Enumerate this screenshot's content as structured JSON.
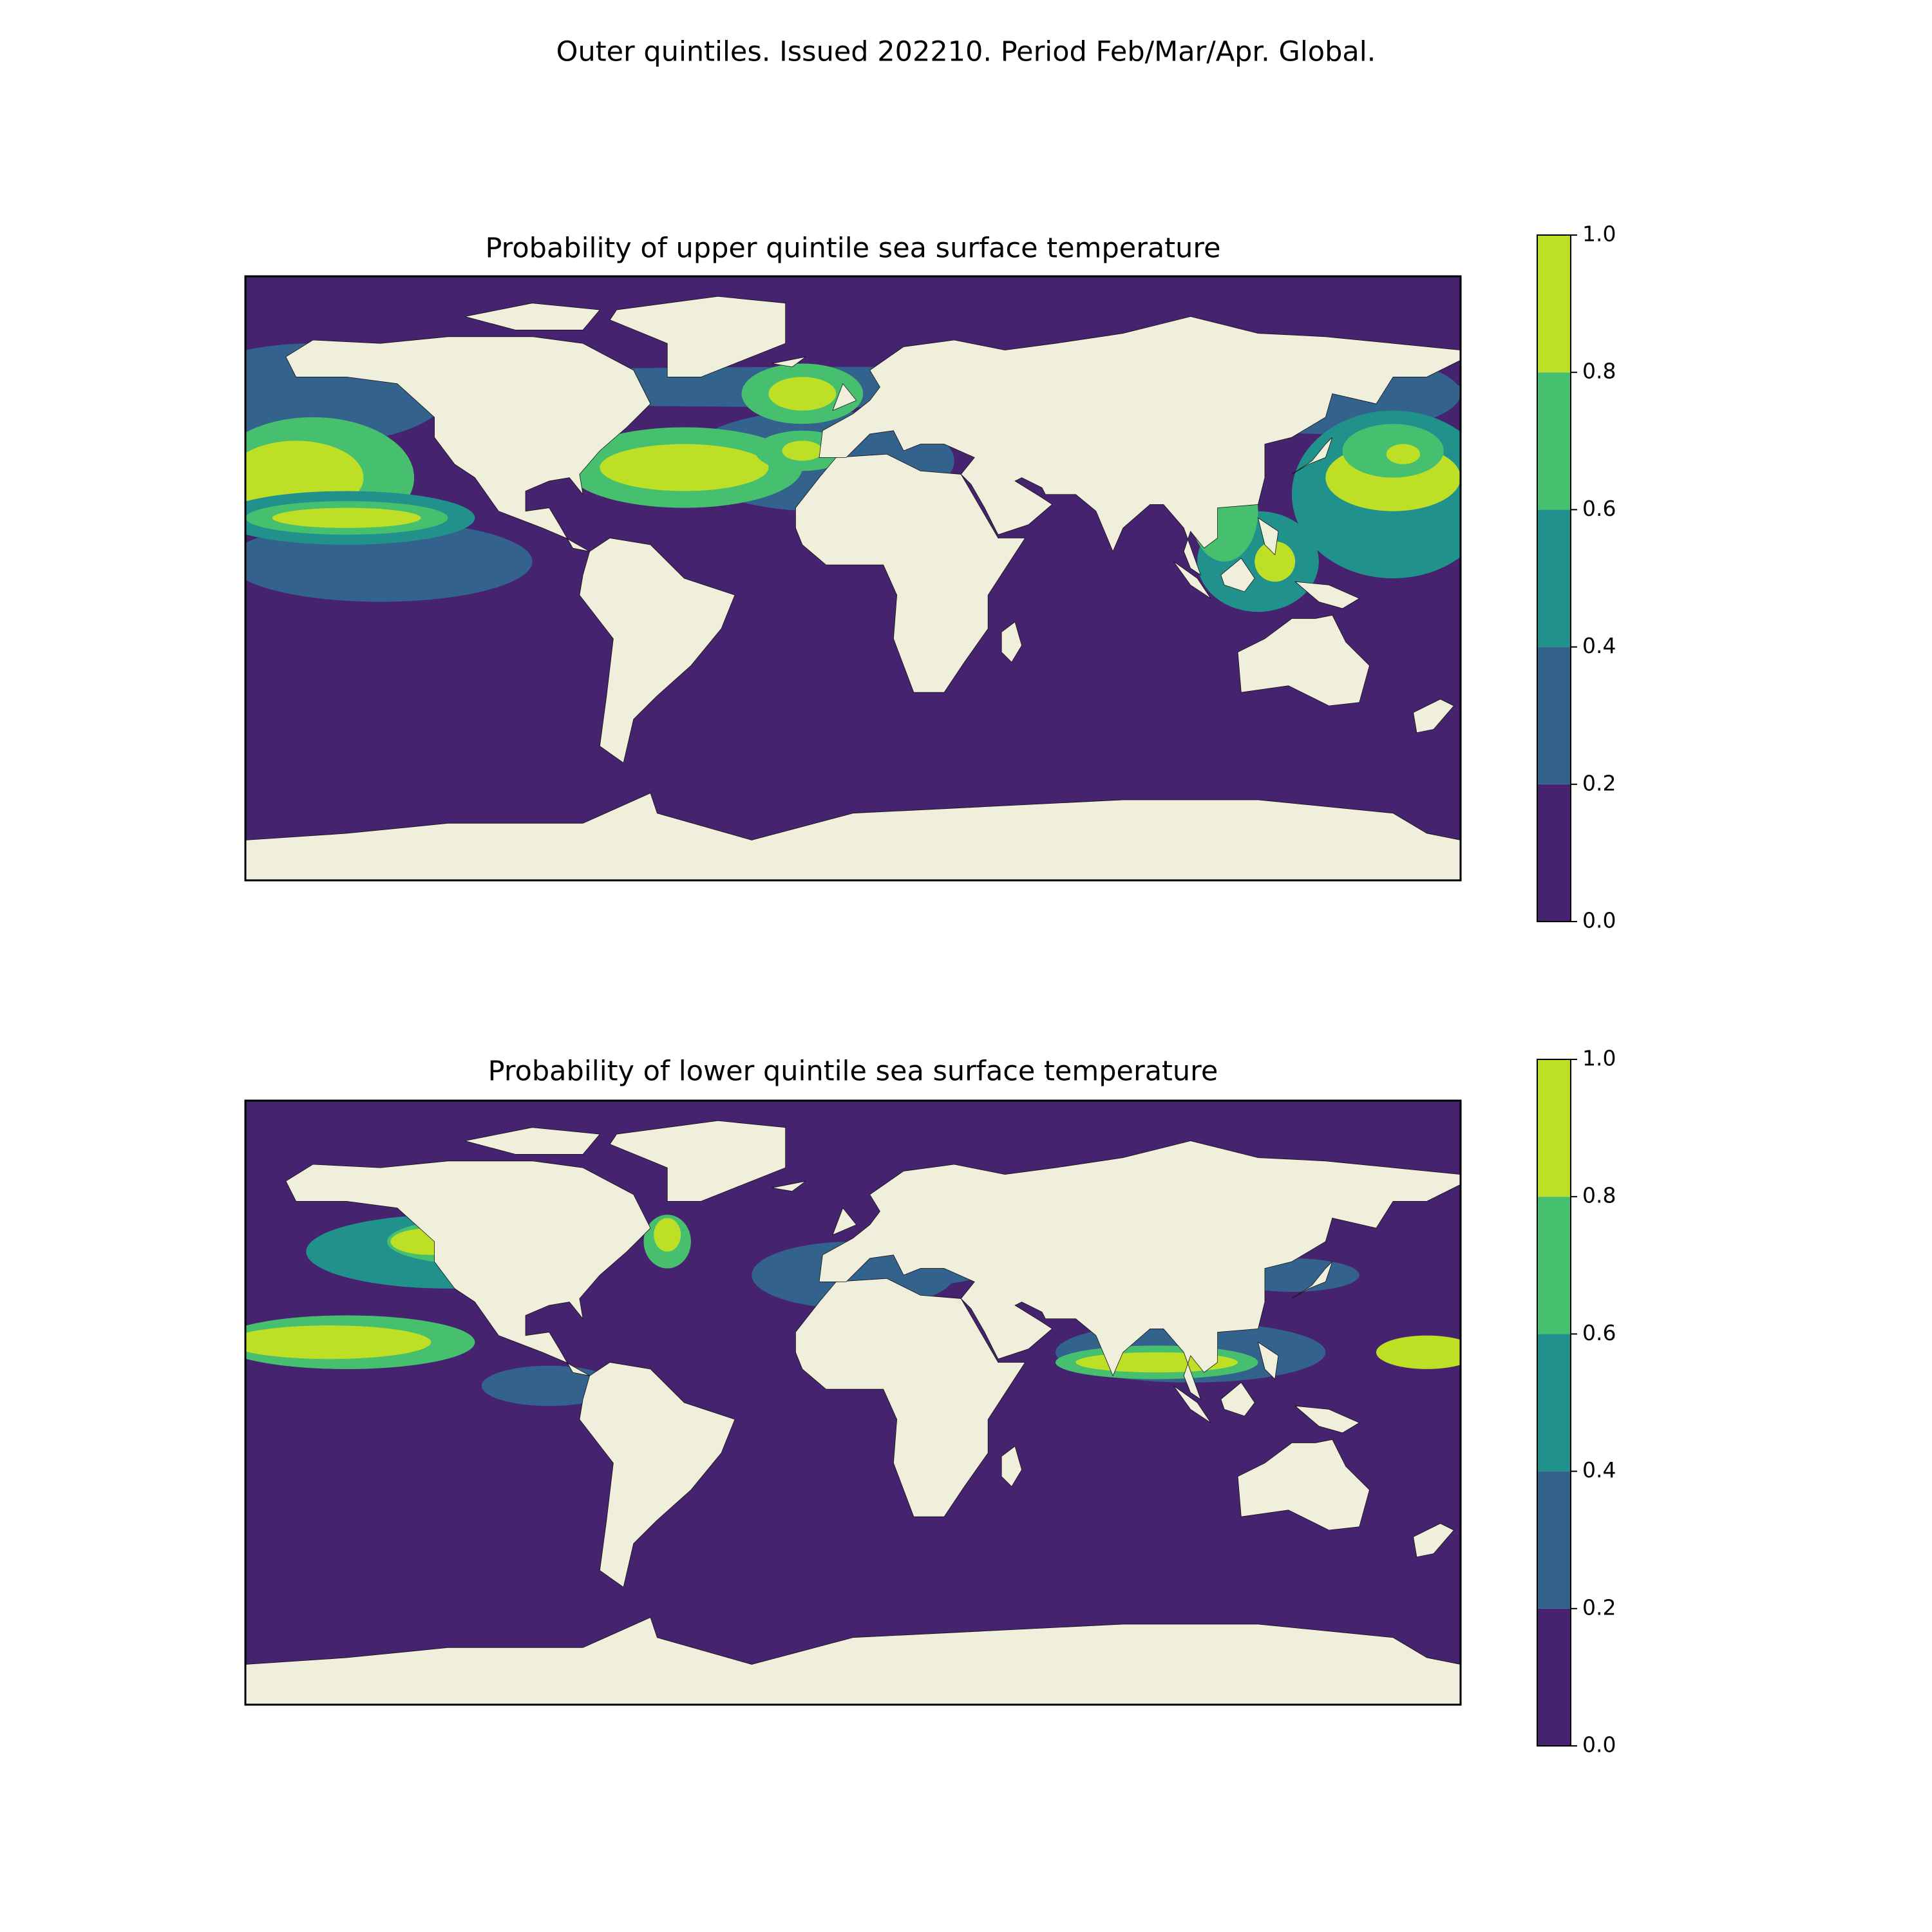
{
  "title": "Outer quintiles. Issued 202210. Period Feb/Mar/Apr. Global.",
  "chart_data": [
    {
      "type": "contour",
      "title": "Probability of upper quintile sea surface temperature",
      "colorbar": {
        "lim": [
          0,
          1
        ],
        "ticks": [
          {
            "value": 0,
            "label": "0.0"
          },
          {
            "value": 0.2,
            "label": "0.2"
          },
          {
            "value": 0.4,
            "label": "0.4"
          },
          {
            "value": 0.6,
            "label": "0.6"
          },
          {
            "value": 0.8,
            "label": "0.8"
          },
          {
            "value": 1,
            "label": "1.0"
          }
        ],
        "colors": [
          "#46236f",
          "#33628d",
          "#21918c",
          "#46c06f",
          "#bddf26"
        ]
      }
    },
    {
      "type": "contour",
      "title": "Probability of lower quintile sea surface temperature",
      "colorbar": {
        "lim": [
          0,
          1
        ],
        "ticks": [
          {
            "value": 0,
            "label": "0.0"
          },
          {
            "value": 0.2,
            "label": "0.2"
          },
          {
            "value": 0.4,
            "label": "0.4"
          },
          {
            "value": 0.6,
            "label": "0.6"
          },
          {
            "value": 0.8,
            "label": "0.8"
          },
          {
            "value": 1,
            "label": "1.0"
          }
        ],
        "colors": [
          "#46236f",
          "#33628d",
          "#21918c",
          "#46c06f",
          "#bddf26"
        ]
      }
    }
  ]
}
